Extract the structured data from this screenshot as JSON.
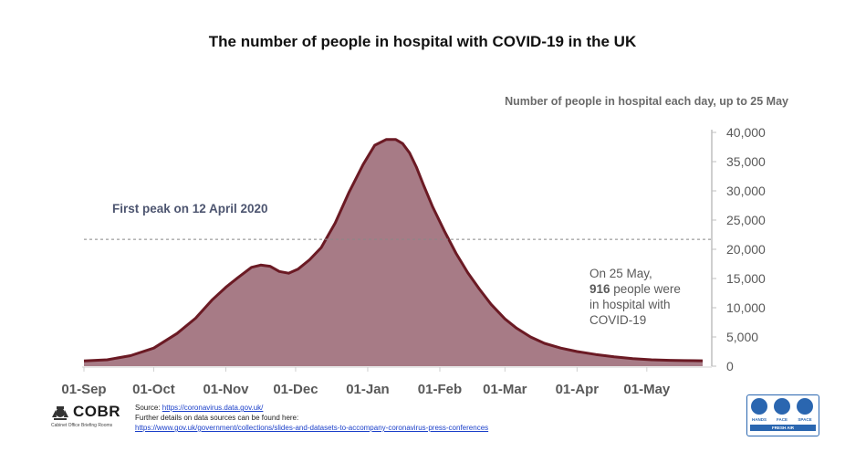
{
  "chart_data": {
    "type": "area",
    "title": "The number of people in hospital with COVID-19 in the UK",
    "subtitle": "Number of people in hospital each day, up to 25 May",
    "y_ticks": [
      "40,000",
      "35,000",
      "30,000",
      "25,000",
      "20,000",
      "15,000",
      "10,000",
      "5,000",
      "0"
    ],
    "ylim": [
      0,
      40000
    ],
    "y_axis_side": "right",
    "x_ticks": [
      {
        "label": "01-Sep",
        "day": 0
      },
      {
        "label": "01-Oct",
        "day": 30
      },
      {
        "label": "01-Nov",
        "day": 61
      },
      {
        "label": "01-Dec",
        "day": 91
      },
      {
        "label": "01-Jan",
        "day": 122
      },
      {
        "label": "01-Feb",
        "day": 153
      },
      {
        "label": "01-Mar",
        "day": 181
      },
      {
        "label": "01-Apr",
        "day": 212
      },
      {
        "label": "01-May",
        "day": 242
      }
    ],
    "x_range_days": [
      0,
      266
    ],
    "series": [
      {
        "name": "People in hospital",
        "x_days": [
          0,
          10,
          20,
          30,
          40,
          48,
          55,
          61,
          66,
          72,
          76,
          80,
          84,
          88,
          92,
          97,
          102,
          108,
          114,
          120,
          125,
          130,
          134,
          137,
          140,
          143,
          146,
          150,
          155,
          160,
          165,
          170,
          175,
          181,
          186,
          192,
          198,
          205,
          212,
          220,
          228,
          236,
          244,
          252,
          258,
          266
        ],
        "values": [
          900,
          1100,
          1800,
          3100,
          5600,
          8200,
          11300,
          13500,
          15100,
          16900,
          17300,
          17100,
          16200,
          15900,
          16600,
          18200,
          20300,
          24500,
          29800,
          34500,
          37800,
          38800,
          38800,
          38100,
          36500,
          34000,
          31000,
          27200,
          23100,
          19300,
          16000,
          13200,
          10600,
          8100,
          6500,
          5000,
          3900,
          3100,
          2500,
          2000,
          1600,
          1300,
          1100,
          1000,
          950,
          916
        ]
      }
    ],
    "reference_line": {
      "value": 21700,
      "style": "dashed",
      "label": "First peak on 12 April 2020"
    },
    "annotation": {
      "lines": [
        "On 25 May,",
        "916 people were",
        "in hospital with",
        "COVID-19"
      ]
    },
    "colors": {
      "fill": "#a77b86",
      "line": "#6b1a24",
      "reference": "#888888",
      "axis": "#bfbfbf",
      "label": "#595959"
    }
  },
  "annotation_note": {
    "line1": "On 25 May,",
    "line2_bold": "916",
    "line2_rest": " people were",
    "line3": "in hospital with",
    "line4": "COVID-19"
  },
  "logo": {
    "name": "COBR",
    "subtitle": "Cabinet Office Briefing Rooms"
  },
  "source": {
    "prefix": "Source: ",
    "link": "https://coronavirus.data.gov.uk/",
    "further": "Further details on data sources can be found here:",
    "link2": "https://www.gov.uk/government/collections/slides-and-datasets-to-accompany-coronavirus-press-conferences"
  },
  "campaign_badge": {
    "labels": [
      "HANDS",
      "FACE",
      "SPACE"
    ],
    "footer": "FRESH AIR",
    "color": "#2a66b0"
  }
}
